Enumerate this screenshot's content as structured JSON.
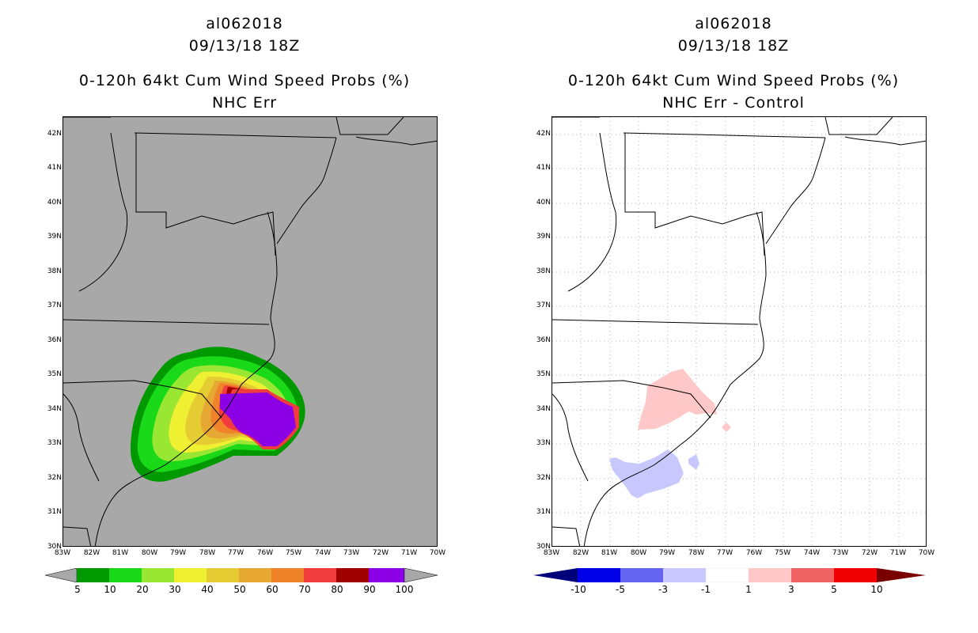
{
  "panels": [
    {
      "storm_id": "al062018",
      "datetime": "09/13/18 18Z",
      "product": "0-120h 64kt Cum Wind Speed Probs (%)",
      "subtitle": "NHC Err",
      "background": "#a8a8a8",
      "colorbar": {
        "labels": [
          "5",
          "10",
          "20",
          "30",
          "40",
          "50",
          "60",
          "70",
          "80",
          "90",
          "100"
        ],
        "colors": [
          "#009900",
          "#19d919",
          "#99e633",
          "#f0f033",
          "#e6cc33",
          "#e6a833",
          "#f08229",
          "#f03c3c",
          "#a00000",
          "#8c00e6"
        ],
        "end_colors": [
          "#a8a8a8",
          "#a8a8a8"
        ]
      }
    },
    {
      "storm_id": "al062018",
      "datetime": "09/13/18 18Z",
      "product": "0-120h 64kt Cum Wind Speed Probs (%)",
      "subtitle": "NHC Err - Control",
      "background": "#ffffff",
      "colorbar": {
        "labels": [
          "-10",
          "-5",
          "-3",
          "-1",
          "1",
          "3",
          "5",
          "10"
        ],
        "colors": [
          "#0000e6",
          "#6464f0",
          "#c8c8ff",
          "#ffffff",
          "#ffc8c8",
          "#f06464",
          "#f00000"
        ],
        "end_colors": [
          "#00007a",
          "#7a0000"
        ]
      }
    }
  ],
  "map_axes": {
    "lat_labels": [
      "42N",
      "41N",
      "40N",
      "39N",
      "38N",
      "37N",
      "36N",
      "35N",
      "34N",
      "33N",
      "32N",
      "31N",
      "30N"
    ],
    "lon_labels": [
      "83W",
      "82W",
      "81W",
      "80W",
      "79W",
      "78W",
      "77W",
      "76W",
      "75W",
      "74W",
      "73W",
      "72W",
      "71W",
      "70W"
    ],
    "lat_range": [
      30,
      42.5
    ],
    "lon_range": [
      -83,
      -70
    ]
  }
}
